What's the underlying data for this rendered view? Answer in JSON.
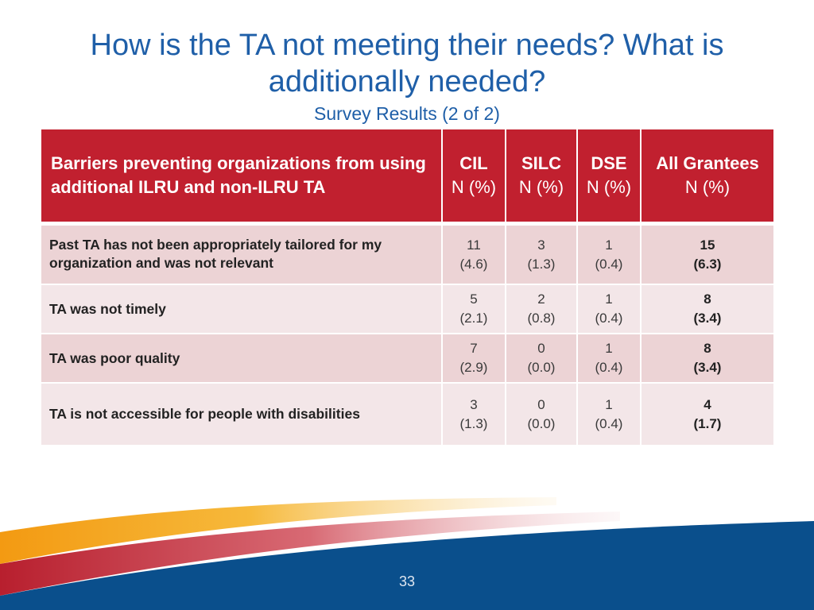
{
  "title": "How is the TA not meeting their needs? What is additionally needed?",
  "subtitle": "Survey Results (2 of 2)",
  "table": {
    "headers": [
      {
        "strong": "Barriers preventing organizations from using additional ILRU and non-ILRU TA",
        "sub": ""
      },
      {
        "strong": "CIL",
        "sub": "N (%)"
      },
      {
        "strong": "SILC",
        "sub": "N (%)"
      },
      {
        "strong": "DSE",
        "sub": "N (%)"
      },
      {
        "strong": "All Grantees",
        "sub": "N (%)"
      }
    ],
    "rows": [
      {
        "label": "Past TA has not been appropriately tailored for my organization and was not relevant",
        "cells": [
          {
            "n": "11",
            "pct": "(4.6)"
          },
          {
            "n": "3",
            "pct": "(1.3)"
          },
          {
            "n": "1",
            "pct": "(0.4)"
          },
          {
            "n": "15",
            "pct": "(6.3)"
          }
        ]
      },
      {
        "label": "TA was not timely",
        "cells": [
          {
            "n": "5",
            "pct": "(2.1)"
          },
          {
            "n": "2",
            "pct": "(0.8)"
          },
          {
            "n": "1",
            "pct": "(0.4)"
          },
          {
            "n": "8",
            "pct": "(3.4)"
          }
        ]
      },
      {
        "label": "TA was poor quality",
        "cells": [
          {
            "n": "7",
            "pct": "(2.9)"
          },
          {
            "n": "0",
            "pct": "(0.0)"
          },
          {
            "n": "1",
            "pct": "(0.4)"
          },
          {
            "n": "8",
            "pct": "(3.4)"
          }
        ]
      },
      {
        "label": "TA is not accessible for people with disabilities",
        "cells": [
          {
            "n": "3",
            "pct": "(1.3)"
          },
          {
            "n": "0",
            "pct": "(0.0)"
          },
          {
            "n": "1",
            "pct": "(0.4)"
          },
          {
            "n": "4",
            "pct": "(1.7)"
          }
        ]
      }
    ]
  },
  "page_number": "33",
  "colors": {
    "title": "#1f5fa8",
    "header_bg": "#c1202f",
    "row_dark": "#ecd3d5",
    "row_light": "#f3e6e8",
    "swoosh_blue": "#0a4f8c",
    "swoosh_orange": "#f5a21b",
    "swoosh_red": "#c1202f"
  }
}
